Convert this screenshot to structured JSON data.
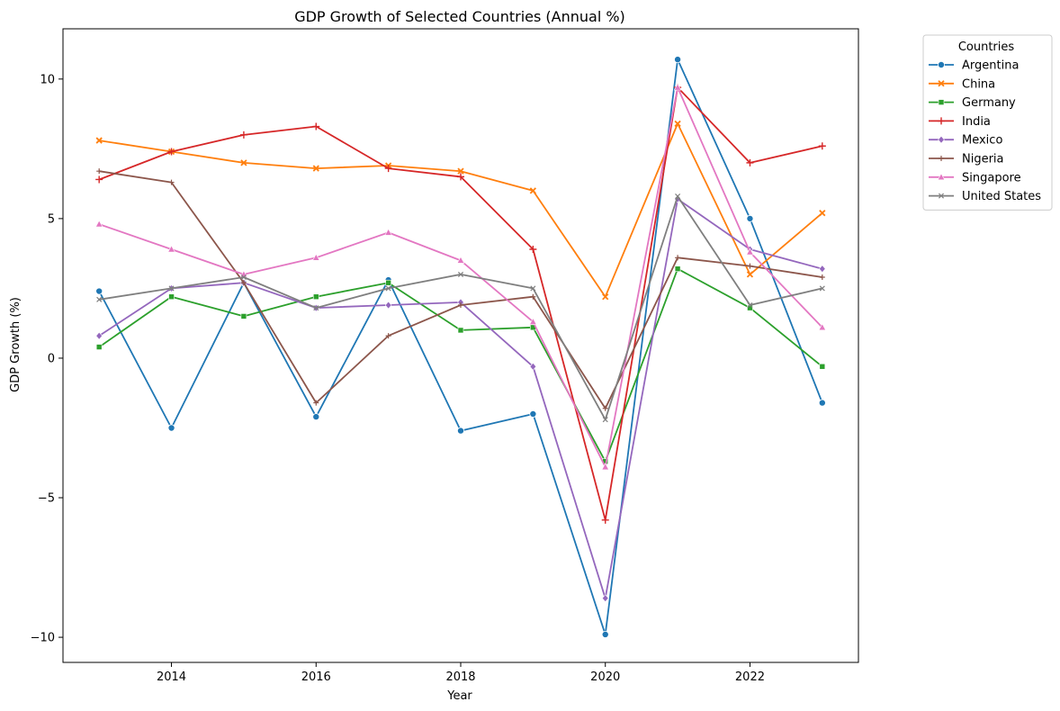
{
  "chart_data": {
    "type": "line",
    "title": "GDP Growth of Selected Countries (Annual %)",
    "xlabel": "Year",
    "ylabel": "GDP Growth (%)",
    "x": [
      2013,
      2014,
      2015,
      2016,
      2017,
      2018,
      2019,
      2020,
      2021,
      2022,
      2023
    ],
    "xlim": [
      2012.5,
      2023.5
    ],
    "ylim": [
      -10.9,
      11.8
    ],
    "xticks": [
      2014,
      2016,
      2018,
      2020,
      2022
    ],
    "yticks": [
      -10,
      -5,
      0,
      5,
      10
    ],
    "grid": false,
    "legend": {
      "title": "Countries",
      "placement": "outside top-right"
    },
    "series": [
      {
        "name": "Argentina",
        "color": "#1f77b4",
        "marker": "circle",
        "values": [
          2.4,
          -2.5,
          2.7,
          -2.1,
          2.8,
          -2.6,
          -2.0,
          -9.9,
          10.7,
          5.0,
          -1.6
        ]
      },
      {
        "name": "China",
        "color": "#ff7f0e",
        "marker": "x",
        "values": [
          7.8,
          7.4,
          7.0,
          6.8,
          6.9,
          6.7,
          6.0,
          2.2,
          8.4,
          3.0,
          5.2
        ]
      },
      {
        "name": "Germany",
        "color": "#2ca02c",
        "marker": "square",
        "values": [
          0.4,
          2.2,
          1.5,
          2.2,
          2.7,
          1.0,
          1.1,
          -3.7,
          3.2,
          1.8,
          -0.3
        ]
      },
      {
        "name": "India",
        "color": "#d62728",
        "marker": "plus",
        "values": [
          6.4,
          7.4,
          8.0,
          8.3,
          6.8,
          6.5,
          3.9,
          -5.8,
          9.7,
          7.0,
          7.6
        ]
      },
      {
        "name": "Mexico",
        "color": "#9467bd",
        "marker": "diamond",
        "values": [
          0.8,
          2.5,
          2.7,
          1.8,
          1.9,
          2.0,
          -0.3,
          -8.6,
          5.7,
          3.9,
          3.2
        ]
      },
      {
        "name": "Nigeria",
        "color": "#8c564b",
        "marker": "thin-plus",
        "values": [
          6.7,
          6.3,
          2.7,
          -1.6,
          0.8,
          1.9,
          2.2,
          -1.8,
          3.6,
          3.3,
          2.9
        ]
      },
      {
        "name": "Singapore",
        "color": "#e377c2",
        "marker": "triangle",
        "values": [
          4.8,
          3.9,
          3.0,
          3.6,
          4.5,
          3.5,
          1.3,
          -3.9,
          9.7,
          3.8,
          1.1
        ]
      },
      {
        "name": "United States",
        "color": "#7f7f7f",
        "marker": "thin-x",
        "values": [
          2.1,
          2.5,
          2.9,
          1.8,
          2.5,
          3.0,
          2.5,
          -2.2,
          5.8,
          1.9,
          2.5
        ]
      }
    ]
  }
}
